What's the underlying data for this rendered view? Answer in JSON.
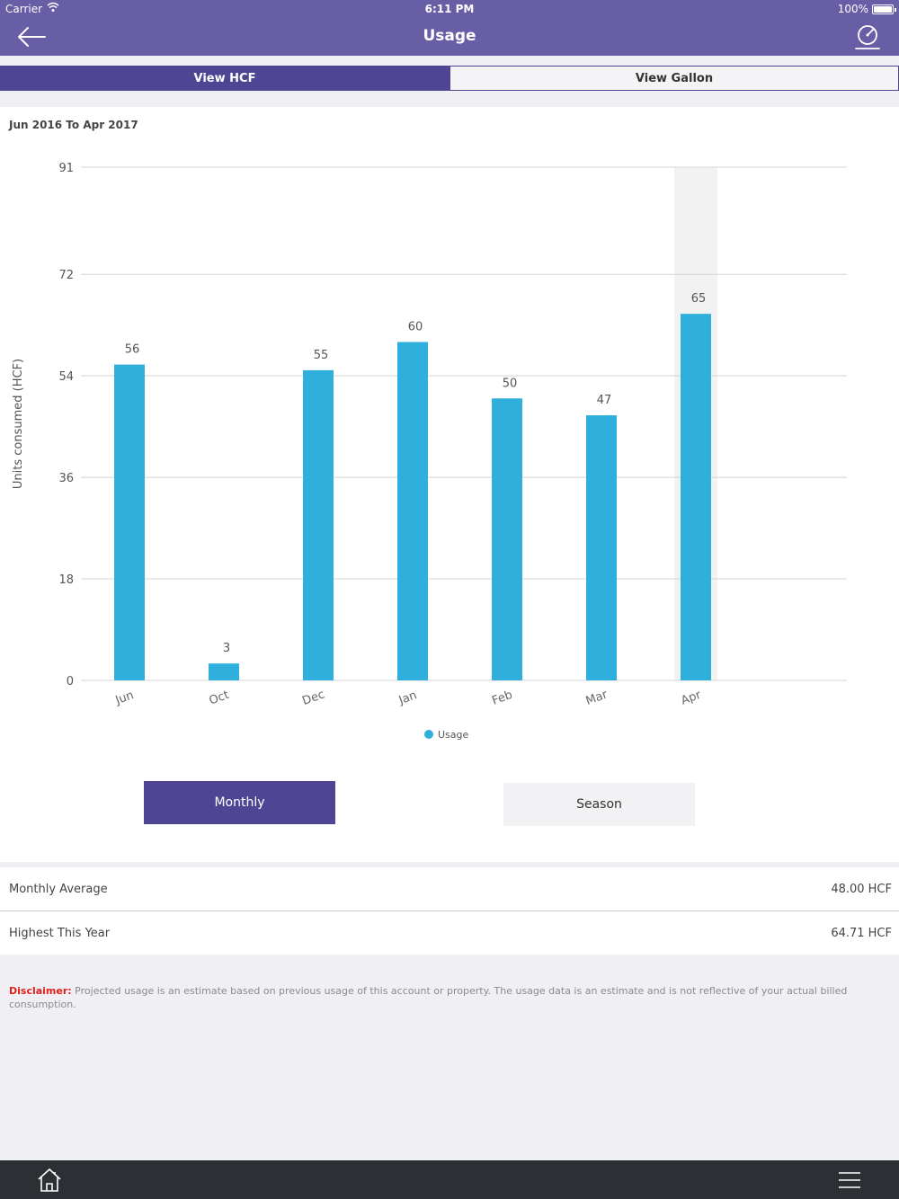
{
  "status_bar": {
    "carrier": "Carrier",
    "time": "6:11 PM",
    "battery": "100%"
  },
  "nav": {
    "title": "Usage",
    "back_icon": "arrow-left-icon",
    "gauge_icon": "gauge-icon"
  },
  "segments": {
    "hcf_label": "View HCF",
    "gallon_label": "View Gallon",
    "selected": "hcf"
  },
  "chart_header": {
    "range": "Jun 2016 To Apr 2017"
  },
  "chart_data": {
    "type": "bar",
    "categories": [
      "Jun",
      "Oct",
      "Dec",
      "Jan",
      "Feb",
      "Mar",
      "Apr"
    ],
    "values": [
      56,
      3,
      55,
      60,
      50,
      47,
      65
    ],
    "data_labels": [
      "56",
      "3",
      "55",
      "60",
      "50",
      "47",
      "65"
    ],
    "series": [
      {
        "name": "Usage",
        "values": [
          56,
          3,
          55,
          60,
          50,
          47,
          65
        ]
      }
    ],
    "ylabel": "Units consumed (HCF)",
    "xlabel": "",
    "ylim": [
      0,
      91
    ],
    "yticks": [
      "0",
      "18",
      "36",
      "54",
      "72",
      "91"
    ],
    "ytick_values": [
      0,
      18,
      36,
      54,
      72,
      91
    ],
    "grid": true,
    "legend_position": "bottom-center",
    "highlighted_category": "Apr",
    "bar_color": "#2fafdc"
  },
  "period_buttons": {
    "monthly_label": "Monthly",
    "season_label": "Season",
    "selected": "monthly"
  },
  "stats": [
    {
      "label": "Monthly Average",
      "value": "48.00 HCF"
    },
    {
      "label": "Highest This Year",
      "value": "64.71 HCF"
    }
  ],
  "disclaimer": {
    "prefix": "Disclaimer:",
    "text": " Projected usage is an estimate based on previous usage of this account or property. The usage data is an estimate and is not reflective of your actual billed consumption."
  },
  "tab_bar": {
    "home_icon": "home-icon",
    "menu_icon": "hamburger-menu-icon"
  },
  "colors": {
    "header": "#675ea6",
    "accent": "#4e4694",
    "bar": "#2fafdc",
    "disclaimer_label": "#e0201c",
    "tab_bar": "#2c2f33"
  }
}
